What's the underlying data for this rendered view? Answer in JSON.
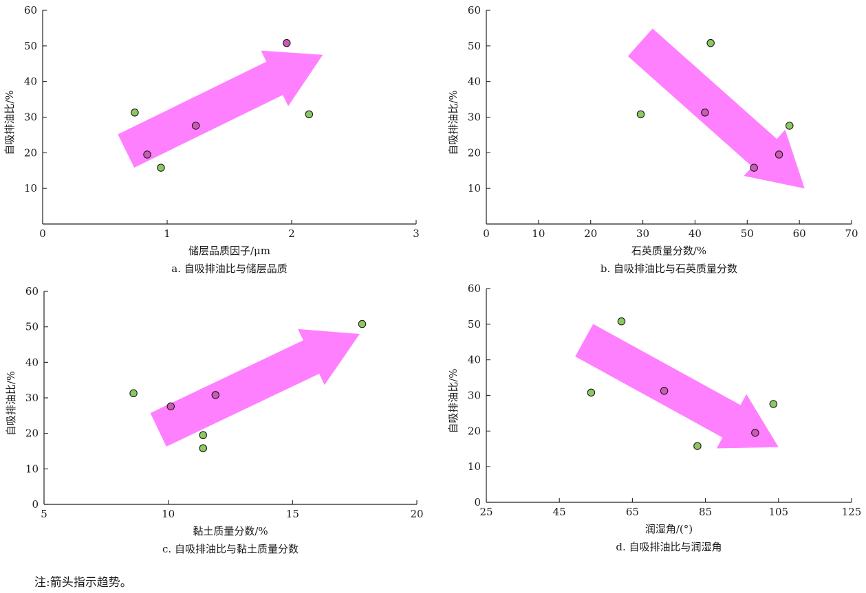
{
  "note": "注:箭头指示趋势。",
  "colors": {
    "arrow": "#ff80ff",
    "point_green": "#8cc860",
    "point_magenta": "#cc5ab4",
    "axis": "#222222"
  },
  "chart_data": [
    {
      "type": "scatter",
      "caption": "a. 自吸排油比与储层品质",
      "xlabel": "储层品质因子/μm",
      "ylabel": "自吸排油比/%",
      "xlim": [
        0,
        3
      ],
      "ylim": [
        0,
        60
      ],
      "xticks": [
        0,
        1,
        2,
        3
      ],
      "yticks": [
        10,
        20,
        30,
        40,
        50,
        60
      ],
      "xtick_labels": [
        "0",
        "1",
        "2",
        "3"
      ],
      "ytick_labels": [
        "10",
        "20",
        "30",
        "40",
        "50",
        "60"
      ],
      "trend": "up",
      "arrow": {
        "x0": 0.67,
        "y0": 20.5,
        "x1": 2.25,
        "y1": 47.5
      },
      "points": [
        {
          "x": 0.74,
          "y": 31.3,
          "color": "green"
        },
        {
          "x": 0.84,
          "y": 19.5,
          "color": "magenta"
        },
        {
          "x": 0.95,
          "y": 15.8,
          "color": "green"
        },
        {
          "x": 1.23,
          "y": 27.6,
          "color": "magenta"
        },
        {
          "x": 1.96,
          "y": 50.8,
          "color": "magenta"
        },
        {
          "x": 2.14,
          "y": 30.8,
          "color": "green"
        }
      ]
    },
    {
      "type": "scatter",
      "caption": "b. 自吸排油比与石英质量分数",
      "xlabel": "石英质量分数/%",
      "ylabel": "自吸排油比/%",
      "xlim": [
        0,
        70
      ],
      "ylim": [
        0,
        60
      ],
      "xticks": [
        0,
        10,
        20,
        30,
        40,
        50,
        60,
        70
      ],
      "yticks": [
        10,
        20,
        30,
        40,
        50,
        60
      ],
      "xtick_labels": [
        "0",
        "10",
        "20",
        "30",
        "40",
        "50",
        "60",
        "70"
      ],
      "ytick_labels": [
        "10",
        "20",
        "30",
        "40",
        "50",
        "60"
      ],
      "trend": "down",
      "arrow": {
        "x0": 29.5,
        "y0": 51.0,
        "x1": 61.0,
        "y1": 10.0
      },
      "points": [
        {
          "x": 29.6,
          "y": 30.8,
          "color": "green"
        },
        {
          "x": 41.9,
          "y": 31.3,
          "color": "magenta"
        },
        {
          "x": 43.0,
          "y": 50.8,
          "color": "green"
        },
        {
          "x": 51.3,
          "y": 15.8,
          "color": "magenta"
        },
        {
          "x": 56.1,
          "y": 19.5,
          "color": "magenta"
        },
        {
          "x": 58.1,
          "y": 27.6,
          "color": "green"
        }
      ]
    },
    {
      "type": "scatter",
      "caption": "c. 自吸排油比与黏土质量分数",
      "xlabel": "黏土质量分数/%",
      "ylabel": "自吸排油比/%",
      "xlim": [
        5,
        20
      ],
      "ylim": [
        0,
        60
      ],
      "xticks": [
        5,
        10,
        15,
        20
      ],
      "yticks": [
        0,
        10,
        20,
        30,
        40,
        50,
        60
      ],
      "xtick_labels": [
        "5",
        "10",
        "15",
        "20"
      ],
      "ytick_labels": [
        "0",
        "10",
        "20",
        "30",
        "40",
        "50",
        "60"
      ],
      "trend": "up",
      "arrow": {
        "x0": 9.6,
        "y0": 21.0,
        "x1": 17.7,
        "y1": 48.0
      },
      "points": [
        {
          "x": 8.6,
          "y": 31.3,
          "color": "green"
        },
        {
          "x": 10.1,
          "y": 27.6,
          "color": "magenta"
        },
        {
          "x": 11.4,
          "y": 19.5,
          "color": "green"
        },
        {
          "x": 11.4,
          "y": 15.8,
          "color": "green"
        },
        {
          "x": 11.9,
          "y": 30.8,
          "color": "magenta"
        },
        {
          "x": 17.8,
          "y": 50.8,
          "color": "green"
        }
      ]
    },
    {
      "type": "scatter",
      "caption": "d. 自吸排油比与润湿角",
      "xlabel": "润湿角/(°)",
      "ylabel": "自吸排油比/%",
      "xlim": [
        25,
        125
      ],
      "ylim": [
        0,
        60
      ],
      "xticks": [
        25,
        45,
        65,
        85,
        105,
        125
      ],
      "yticks": [
        0,
        10,
        20,
        30,
        40,
        50,
        60
      ],
      "xtick_labels": [
        "25",
        "45",
        "65",
        "85",
        "105",
        "125"
      ],
      "ytick_labels": [
        "0",
        "10",
        "20",
        "30",
        "40",
        "50",
        "60"
      ],
      "trend": "down",
      "arrow": {
        "x0": 51.8,
        "y0": 45.5,
        "x1": 105.0,
        "y1": 15.5
      },
      "points": [
        {
          "x": 53.7,
          "y": 30.8,
          "color": "green"
        },
        {
          "x": 62.0,
          "y": 50.8,
          "color": "green"
        },
        {
          "x": 73.7,
          "y": 31.3,
          "color": "magenta"
        },
        {
          "x": 82.8,
          "y": 15.8,
          "color": "green"
        },
        {
          "x": 98.6,
          "y": 19.5,
          "color": "magenta"
        },
        {
          "x": 103.6,
          "y": 27.6,
          "color": "green"
        }
      ]
    }
  ]
}
